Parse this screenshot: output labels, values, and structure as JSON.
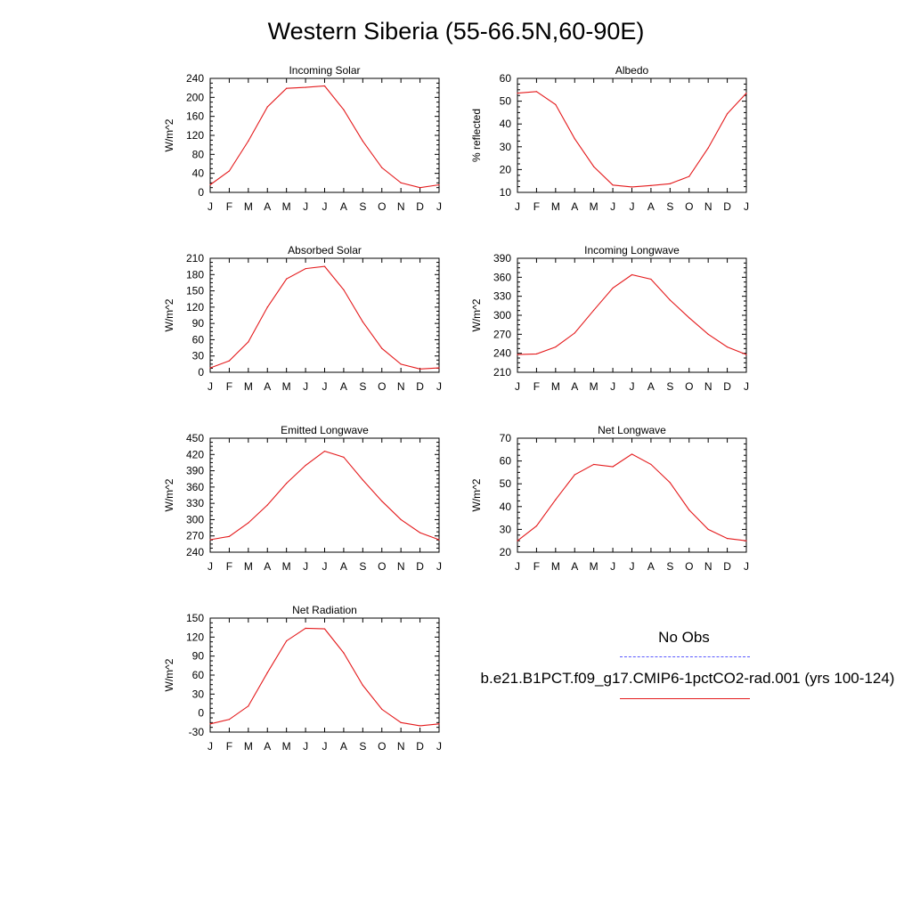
{
  "title": "Western Siberia (55-66.5N,60-90E)",
  "months": [
    "J",
    "F",
    "M",
    "A",
    "M",
    "J",
    "J",
    "A",
    "S",
    "O",
    "N",
    "D",
    "J"
  ],
  "legend": {
    "obs_label": "No Obs",
    "obs_color": "#5a5aff",
    "model_label": "b.e21.B1PCT.f09_g17.CMIP6-1pctCO2-rad.001 (yrs 100-124)",
    "model_color": "#e41a1c"
  },
  "chart_data": [
    {
      "type": "line",
      "title": "Incoming Solar",
      "ylabel": "W/m^2",
      "ylim": [
        0,
        240
      ],
      "yticks": [
        0,
        40,
        80,
        120,
        160,
        200,
        240
      ],
      "series": [
        {
          "values": [
            16,
            45,
            108,
            180,
            219,
            221,
            224,
            174,
            108,
            52,
            20,
            10,
            16
          ]
        }
      ]
    },
    {
      "type": "line",
      "title": "Albedo",
      "ylabel": "% reflected",
      "ylim": [
        10,
        60
      ],
      "yticks": [
        10,
        20,
        30,
        40,
        50,
        60
      ],
      "series": [
        {
          "values": [
            53.5,
            54.2,
            48.5,
            33.5,
            21.3,
            13.2,
            12.4,
            13.0,
            13.8,
            17.0,
            29.5,
            44.5,
            53.5
          ]
        }
      ]
    },
    {
      "type": "line",
      "title": "Absorbed Solar",
      "ylabel": "W/m^2",
      "ylim": [
        0,
        210
      ],
      "yticks": [
        0,
        30,
        60,
        90,
        120,
        150,
        180,
        210
      ],
      "series": [
        {
          "values": [
            8,
            21,
            56,
            120,
            172,
            191,
            195,
            152,
            93,
            44,
            15,
            6,
            8
          ]
        }
      ]
    },
    {
      "type": "line",
      "title": "Incoming Longwave",
      "ylabel": "W/m^2",
      "ylim": [
        210,
        390
      ],
      "yticks": [
        210,
        240,
        270,
        300,
        330,
        360,
        390
      ],
      "series": [
        {
          "values": [
            238,
            239,
            250,
            272,
            308,
            343,
            364,
            357,
            324,
            296,
            270,
            250,
            238
          ]
        }
      ]
    },
    {
      "type": "line",
      "title": "Emitted Longwave",
      "ylabel": "W/m^2",
      "ylim": [
        240,
        450
      ],
      "yticks": [
        240,
        270,
        300,
        330,
        360,
        390,
        420,
        450
      ],
      "series": [
        {
          "values": [
            263,
            269,
            294,
            327,
            367,
            400,
            426,
            415,
            373,
            334,
            300,
            276,
            263
          ]
        }
      ]
    },
    {
      "type": "line",
      "title": "Net Longwave",
      "ylabel": "W/m^2",
      "ylim": [
        20,
        70
      ],
      "yticks": [
        20,
        30,
        40,
        50,
        60,
        70
      ],
      "series": [
        {
          "values": [
            25,
            31.5,
            43,
            54,
            58.5,
            57.5,
            63,
            58.5,
            50.5,
            38.5,
            30,
            26,
            25
          ]
        }
      ]
    },
    {
      "type": "line",
      "title": "Net Radiation",
      "ylabel": "W/m^2",
      "ylim": [
        -30,
        150
      ],
      "yticks": [
        -30,
        0,
        30,
        60,
        90,
        120,
        150
      ],
      "series": [
        {
          "values": [
            -17,
            -10,
            11,
            64,
            114,
            134,
            133,
            95,
            44,
            6,
            -15,
            -20,
            -17
          ]
        }
      ]
    }
  ]
}
